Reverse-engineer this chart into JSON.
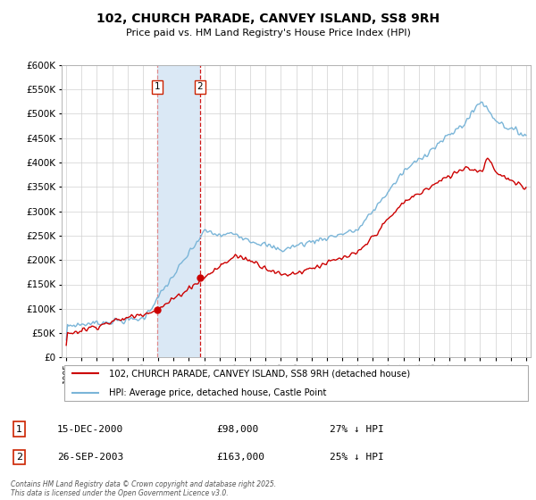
{
  "title": "102, CHURCH PARADE, CANVEY ISLAND, SS8 9RH",
  "subtitle": "Price paid vs. HM Land Registry's House Price Index (HPI)",
  "legend_line1": "102, CHURCH PARADE, CANVEY ISLAND, SS8 9RH (detached house)",
  "legend_line2": "HPI: Average price, detached house, Castle Point",
  "annotation1_date": "15-DEC-2000",
  "annotation1_price": "£98,000",
  "annotation1_hpi": "27% ↓ HPI",
  "annotation2_date": "26-SEP-2003",
  "annotation2_price": "£163,000",
  "annotation2_hpi": "25% ↓ HPI",
  "footer": "Contains HM Land Registry data © Crown copyright and database right 2025.\nThis data is licensed under the Open Government Licence v3.0.",
  "hpi_color": "#7ab5d8",
  "sale_color": "#cc0000",
  "grid_color": "#d0d0d0",
  "highlight_color": "#dae8f5",
  "sale1_x": 2000.96,
  "sale1_y": 98000,
  "sale2_x": 2003.73,
  "sale2_y": 163000,
  "ylim": [
    0,
    600000
  ],
  "xlim": [
    1994.7,
    2025.3
  ]
}
